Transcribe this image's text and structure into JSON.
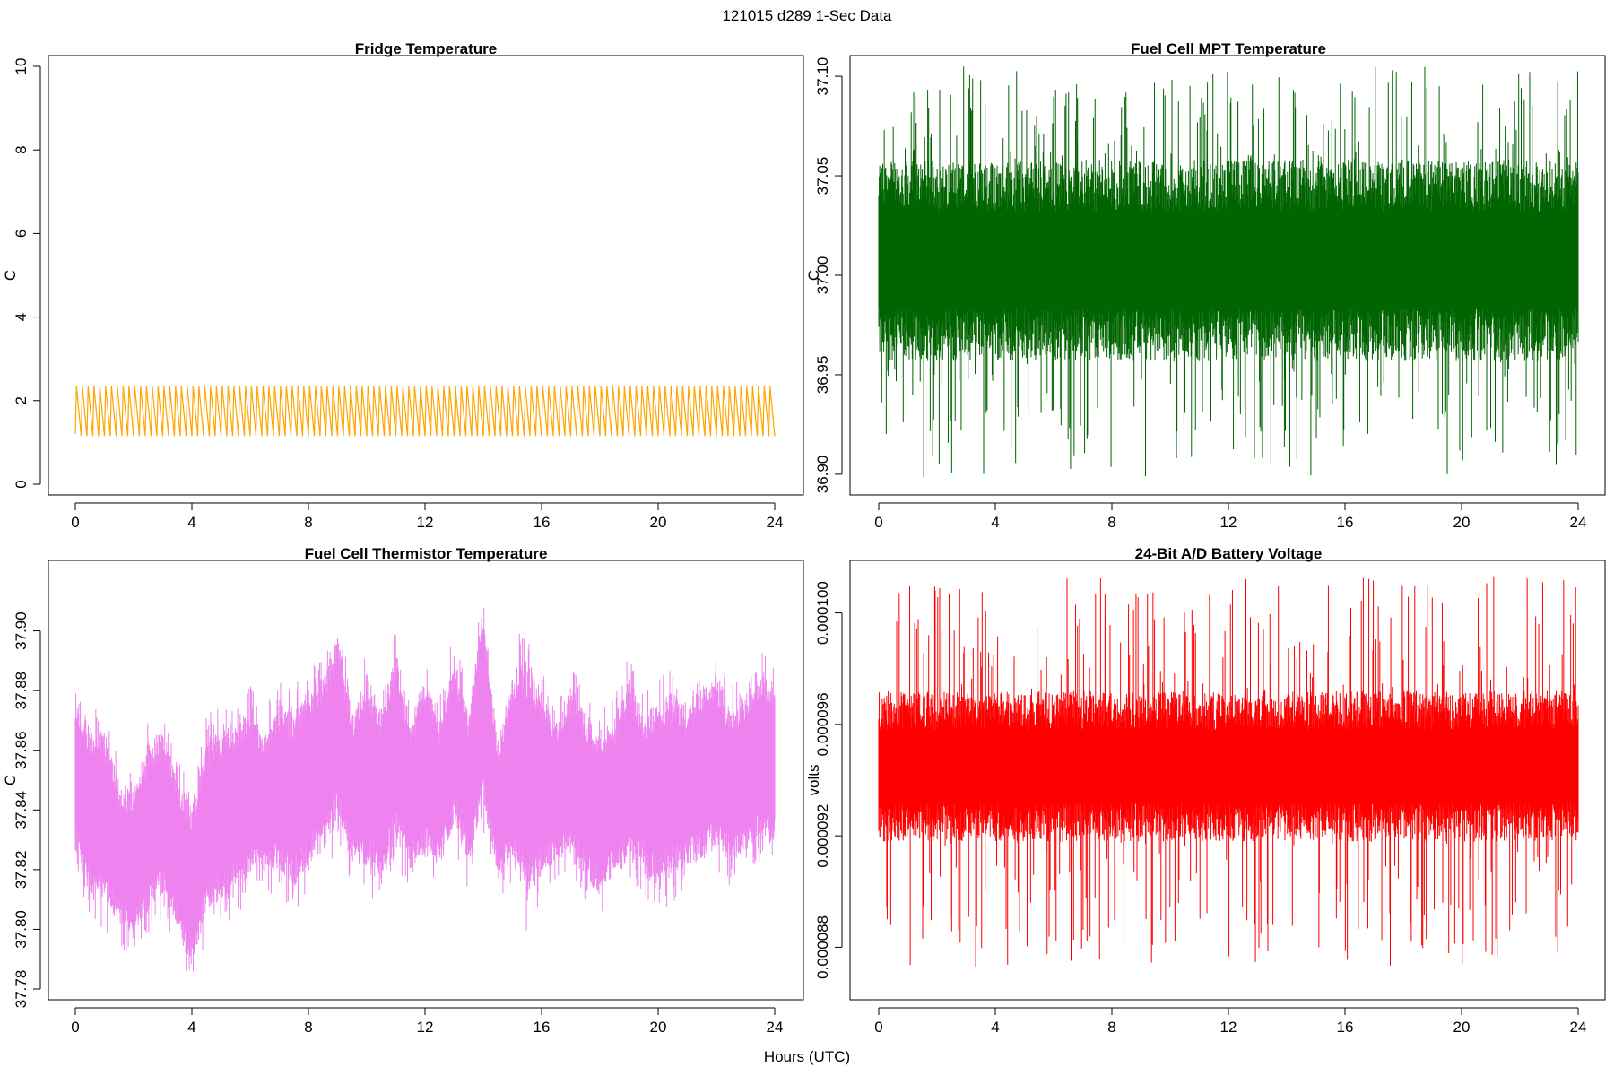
{
  "figure": {
    "title": "121015   d289   1-Sec Data",
    "xlabel": "Hours (UTC)"
  },
  "chart_data": [
    {
      "type": "line",
      "title": "Fridge Temperature",
      "xlabel": "Hours (UTC)",
      "ylabel": "C",
      "xlim": [
        0,
        24
      ],
      "ylim": [
        0,
        10
      ],
      "xticks": [
        0,
        4,
        8,
        12,
        16,
        20,
        24
      ],
      "yticks": [
        "0",
        "2",
        "4",
        "6",
        "8",
        "10"
      ],
      "ytick_values": [
        0,
        2,
        4,
        6,
        8,
        10
      ],
      "color": "#FFA500",
      "series": [
        {
          "name": "Fridge Temperature",
          "signal": "sawtooth",
          "min": 1.15,
          "max": 2.35,
          "cycles": 120,
          "start": 1.2,
          "end": 1.2
        }
      ]
    },
    {
      "type": "line",
      "title": "Fuel Cell MPT Temperature",
      "xlabel": "Hours (UTC)",
      "ylabel": "C",
      "xlim": [
        0,
        24
      ],
      "ylim": [
        36.895,
        37.105
      ],
      "xticks": [
        0,
        4,
        8,
        12,
        16,
        20,
        24
      ],
      "yticks": [
        "36.90",
        "36.95",
        "37.00",
        "37.05",
        "37.10"
      ],
      "ytick_values": [
        36.9,
        36.95,
        37.0,
        37.05,
        37.1
      ],
      "color": "#006400",
      "series": [
        {
          "name": "Fuel Cell MPT Temperature",
          "signal": "noise",
          "mean": 37.005,
          "core_low": 36.97,
          "core_high": 37.045,
          "min": 36.898,
          "max": 37.105
        }
      ]
    },
    {
      "type": "line",
      "title": "Fuel Cell Thermistor Temperature",
      "xlabel": "Hours (UTC)",
      "ylabel": "C",
      "xlim": [
        0,
        24
      ],
      "ylim": [
        37.78,
        37.92
      ],
      "xticks": [
        0,
        4,
        8,
        12,
        16,
        20,
        24
      ],
      "yticks": [
        "37.78",
        "37.80",
        "37.82",
        "37.84",
        "37.86",
        "37.88",
        "37.90"
      ],
      "ytick_values": [
        37.78,
        37.8,
        37.82,
        37.84,
        37.86,
        37.88,
        37.9
      ],
      "color": "#EE82EE",
      "series": [
        {
          "name": "Fuel Cell Thermistor Temperature",
          "signal": "envelope",
          "hours": [
            0,
            0.5,
            1,
            1.5,
            2,
            2.5,
            3,
            3.5,
            4,
            4.5,
            5,
            5.5,
            6,
            6.5,
            7,
            7.5,
            8,
            8.5,
            9,
            9.5,
            10,
            10.5,
            11,
            11.5,
            12,
            12.5,
            13,
            13.5,
            14,
            14.5,
            15,
            15.5,
            16,
            16.5,
            17,
            17.5,
            18,
            18.5,
            19,
            19.5,
            20,
            20.5,
            21,
            21.5,
            22,
            22.5,
            23,
            23.5,
            24
          ],
          "upper": [
            37.876,
            37.868,
            37.866,
            37.85,
            37.846,
            37.862,
            37.868,
            37.85,
            37.842,
            37.864,
            37.866,
            37.87,
            37.874,
            37.866,
            37.876,
            37.872,
            37.882,
            37.884,
            37.9,
            37.872,
            37.886,
            37.874,
            37.894,
            37.868,
            37.886,
            37.87,
            37.892,
            37.872,
            37.91,
            37.862,
            37.886,
            37.892,
            37.88,
            37.87,
            37.882,
            37.872,
            37.868,
            37.87,
            37.886,
            37.872,
            37.876,
            37.88,
            37.874,
            37.882,
            37.886,
            37.874,
            37.88,
            37.888,
            37.882
          ],
          "lower": [
            37.826,
            37.812,
            37.808,
            37.802,
            37.796,
            37.806,
            37.812,
            37.8,
            37.786,
            37.806,
            37.81,
            37.812,
            37.818,
            37.818,
            37.82,
            37.814,
            37.822,
            37.826,
            37.836,
            37.822,
            37.82,
            37.818,
            37.83,
            37.82,
            37.826,
            37.82,
            37.836,
            37.82,
            37.842,
            37.816,
            37.822,
            37.81,
            37.818,
            37.822,
            37.826,
            37.816,
            37.812,
            37.818,
            37.822,
            37.82,
            37.814,
            37.818,
            37.822,
            37.822,
            37.828,
            37.822,
            37.826,
            37.83,
            37.828
          ],
          "min": 37.786,
          "max": 37.912
        }
      ]
    },
    {
      "type": "line",
      "title": "24-Bit A/D Battery Voltage",
      "xlabel": "Hours (UTC)",
      "ylabel": "volts",
      "xlim": [
        0,
        24
      ],
      "ylim": [
        8.65e-05,
        0.0001015
      ],
      "xticks": [
        0,
        4,
        8,
        12,
        16,
        20,
        24
      ],
      "yticks": [
        "0.000088",
        "0.000092",
        "0.000096",
        "0.000100"
      ],
      "ytick_values": [
        8.8e-05,
        9.2e-05,
        9.6e-05,
        0.0001
      ],
      "color": "#FF0000",
      "series": [
        {
          "name": "24-Bit A/D Battery Voltage",
          "signal": "noise",
          "mean": 9.45e-05,
          "core_low": 9.25e-05,
          "core_high": 9.65e-05,
          "min": 8.73e-05,
          "max": 0.0001014
        }
      ]
    }
  ]
}
